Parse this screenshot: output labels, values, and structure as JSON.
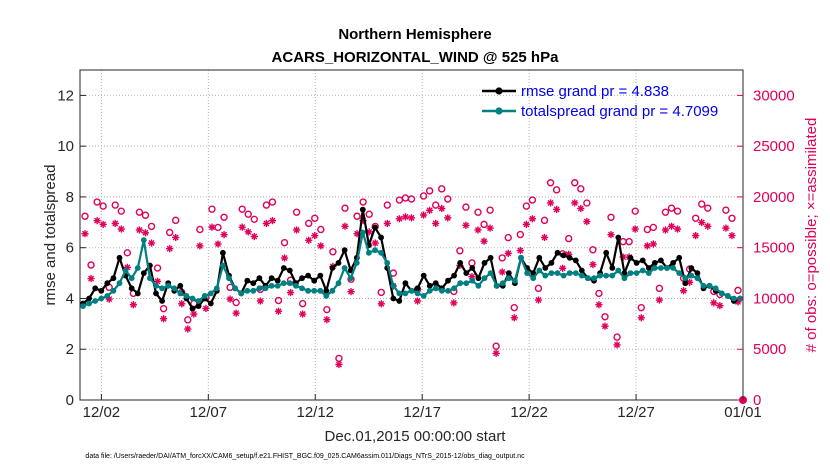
{
  "chart_data": {
    "type": "line",
    "title": "Northern Hemisphere",
    "subtitle": "ACARS_HORIZONTAL_WIND @ 525 hPa",
    "xlabel": "Dec.01,2015 00:00:00 start",
    "ylabel": "rmse and totalspread",
    "y2label": "# of obs: o=possible; ×=assimilated",
    "xlim": [
      0,
      31
    ],
    "ylim": [
      0,
      13
    ],
    "y2lim": [
      0,
      32500
    ],
    "x_ticks": [
      {
        "x": 1,
        "label": "12/02"
      },
      {
        "x": 6,
        "label": "12/07"
      },
      {
        "x": 11,
        "label": "12/12"
      },
      {
        "x": 16,
        "label": "12/17"
      },
      {
        "x": 21,
        "label": "12/22"
      },
      {
        "x": 26,
        "label": "12/27"
      },
      {
        "x": 31,
        "label": "01/01"
      }
    ],
    "y_ticks": [
      0,
      2,
      4,
      6,
      8,
      10,
      12
    ],
    "y2_ticks": [
      0,
      5000,
      10000,
      15000,
      20000,
      25000,
      30000
    ],
    "legend": [
      {
        "label": "rmse grand pr = 4.838",
        "color": "#000000"
      },
      {
        "label": "totalspread grand pr = 4.7099",
        "color": "#008080"
      }
    ],
    "rmse": [
      3.8,
      4.0,
      4.4,
      4.3,
      4.6,
      4.8,
      5.6,
      4.9,
      4.4,
      4.2,
      5.0,
      5.3,
      4.2,
      3.9,
      4.6,
      4.3,
      4.5,
      4.0,
      3.6,
      3.7,
      4.0,
      3.8,
      4.3,
      5.8,
      4.9,
      4.4,
      4.2,
      4.7,
      4.6,
      4.8,
      4.5,
      4.8,
      4.7,
      5.2,
      5.1,
      4.6,
      4.8,
      4.9,
      4.7,
      4.9,
      4.3,
      5.2,
      5.4,
      5.9,
      5.1,
      5.6,
      7.5,
      6.1,
      6.8,
      6.4,
      5.2,
      4.0,
      3.9,
      4.6,
      4.3,
      4.4,
      4.9,
      4.5,
      4.6,
      4.4,
      4.7,
      4.9,
      5.4,
      5.0,
      5.2,
      4.8,
      5.4,
      5.6,
      4.5,
      4.5,
      5.0,
      4.6,
      5.6,
      5.2,
      5.0,
      5.6,
      5.2,
      5.4,
      5.8,
      5.7,
      5.6,
      5.5,
      5.1,
      4.8,
      4.7,
      5.0,
      5.8,
      5.2,
      6.4,
      5.0,
      5.6,
      5.4,
      5.5,
      5.2,
      5.4,
      5.5,
      5.2,
      5.4,
      5.6,
      4.6,
      5.2,
      5.0,
      4.4,
      4.5,
      4.3,
      4.2,
      4.1,
      3.9,
      4.0
    ],
    "totalspread": [
      3.7,
      3.8,
      3.9,
      4.0,
      4.1,
      4.3,
      4.6,
      5.1,
      4.8,
      5.2,
      6.3,
      4.8,
      4.5,
      4.4,
      4.5,
      4.4,
      4.2,
      4.1,
      4.0,
      3.9,
      4.1,
      4.2,
      4.4,
      5.3,
      4.8,
      4.4,
      4.2,
      4.3,
      4.3,
      4.4,
      4.4,
      4.5,
      4.5,
      4.6,
      4.6,
      4.5,
      4.4,
      4.3,
      4.3,
      4.3,
      4.1,
      4.3,
      4.6,
      5.2,
      4.8,
      5.4,
      6.6,
      5.8,
      5.9,
      5.8,
      5.4,
      4.5,
      4.2,
      4.2,
      4.3,
      4.2,
      4.1,
      4.3,
      4.4,
      4.3,
      4.3,
      4.4,
      4.6,
      4.6,
      4.7,
      4.5,
      4.8,
      5.0,
      4.5,
      4.6,
      4.8,
      4.7,
      5.6,
      5.0,
      4.8,
      5.1,
      4.9,
      5.0,
      5.0,
      4.9,
      5.0,
      5.0,
      4.9,
      4.8,
      4.8,
      4.9,
      4.9,
      4.9,
      5.1,
      4.8,
      5.0,
      5.0,
      5.1,
      5.0,
      5.2,
      5.2,
      5.2,
      5.2,
      5.0,
      4.8,
      4.9,
      4.8,
      4.5,
      4.5,
      4.4,
      4.2,
      4.1,
      4.0,
      4.0
    ],
    "obs_possible": [
      17800,
      13000,
      19200,
      18800,
      10800,
      18900,
      18300,
      14200,
      10200,
      18200,
      17900,
      16800,
      12700,
      8700,
      16200,
      17400,
      10300,
      7600,
      9200,
      16500,
      9800,
      18500,
      16700,
      17700,
      10800,
      9300,
      18500,
      18000,
      17500,
      10600,
      18900,
      19200,
      9500,
      15200,
      11500,
      18200,
      9200,
      17100,
      17600,
      16500,
      8600,
      14300,
      3800,
      18600,
      11600,
      17800,
      19200,
      18000,
      16800,
      10300,
      18900,
      12200,
      19400,
      19600,
      19500,
      10600,
      19800,
      20300,
      18900,
      20500,
      19500,
      10400,
      14400,
      18700,
      13200,
      18200,
      17000,
      18400,
      5000,
      13700,
      15700,
      8800,
      16000,
      18800,
      19400,
      10700,
      17400,
      21100,
      20400,
      14100,
      15600,
      21100,
      20500,
      19100,
      14500,
      10200,
      7900,
      17700,
      5900,
      15300,
      15300,
      18300,
      8800,
      16500,
      16700,
      10700,
      18200,
      18600,
      18300,
      11700,
      12600,
      17600,
      19000,
      18600,
      10400,
      10100,
      18400,
      17600,
      10500
    ]
  },
  "footer": {
    "note": "data file: /Users/raeder/DAI/ATM_forcXX/CAM6_setup/f.e21.FHIST_BGC.f09_025.CAM6assim.011/Diags_NTrS_2015-12/obs_diag_output.nc"
  }
}
